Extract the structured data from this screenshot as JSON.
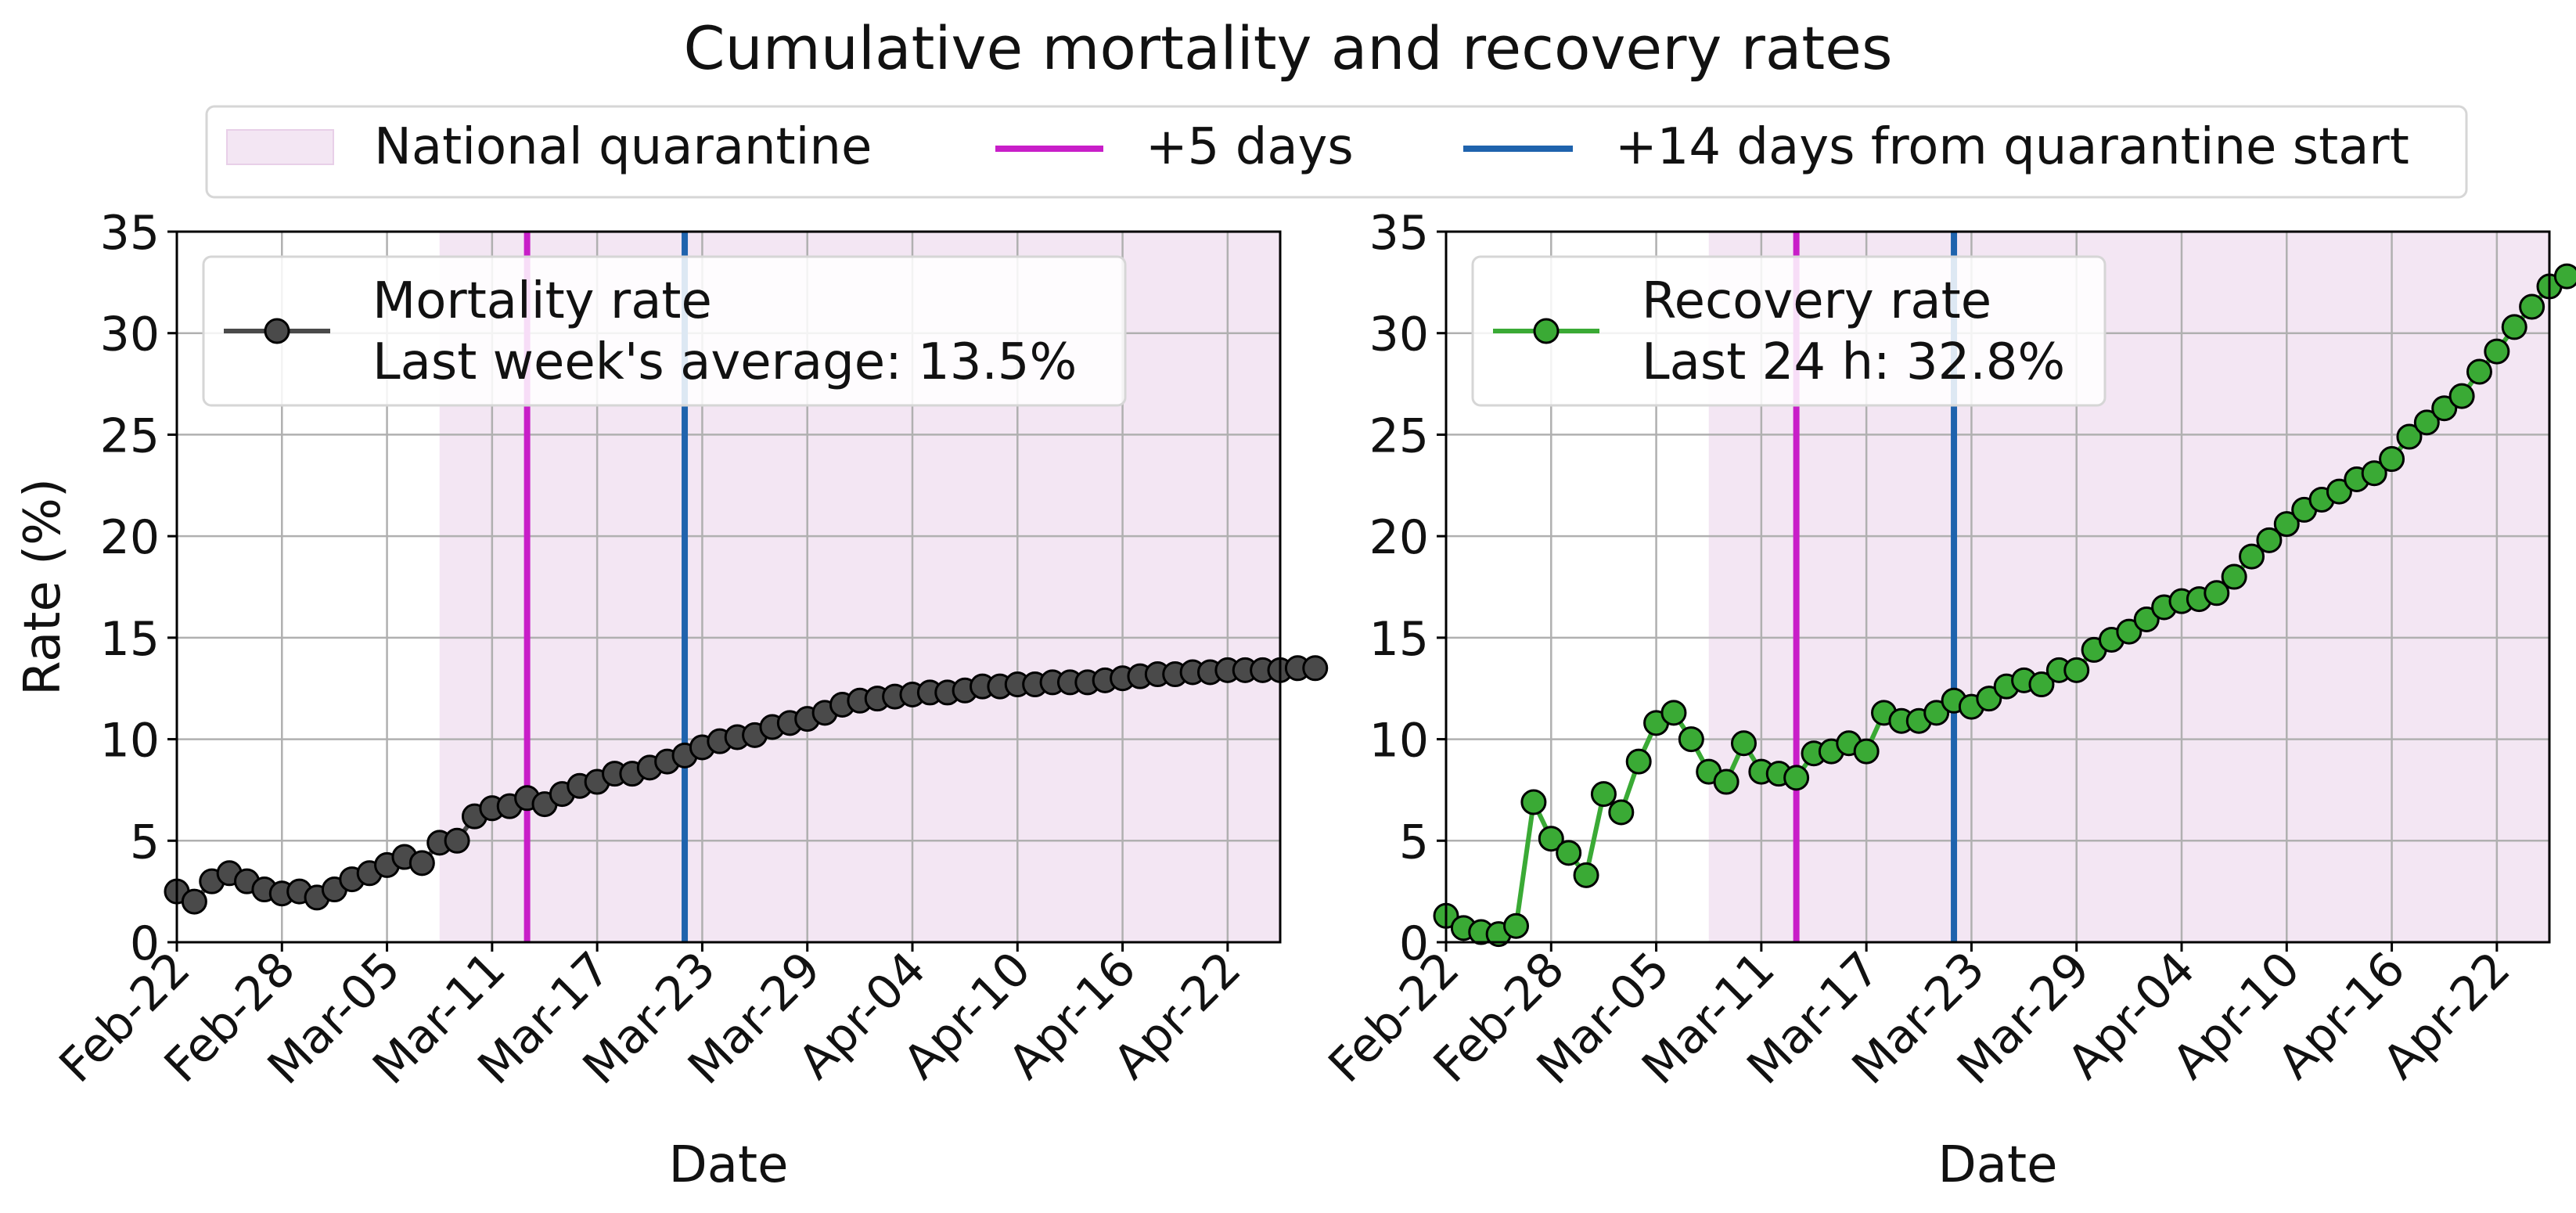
{
  "figure": {
    "title": "Cumulative mortality and recovery rates",
    "legend": {
      "quarantine_label": "National quarantine",
      "plus5_label": "+5 days",
      "plus14_label": "+14 days from quarantine start"
    },
    "colors": {
      "quarantine_fill": "#f3e6f3",
      "plus5": "#c81ec8",
      "plus14": "#1f63ad",
      "grid": "#b0b0b0",
      "mortality": "#4a4a4a",
      "recovery": "#3aaa35"
    }
  },
  "chart_data": [
    {
      "type": "line",
      "name": "mortality",
      "ylabel": "Rate (%)",
      "xlabel": "Date",
      "ylim": [
        0,
        35
      ],
      "yticks": [
        0,
        5,
        10,
        15,
        20,
        25,
        30,
        35
      ],
      "x_range": [
        "2020-02-22",
        "2020-04-25"
      ],
      "xticks": [
        "2020-02-22",
        "2020-02-28",
        "2020-03-05",
        "2020-03-11",
        "2020-03-17",
        "2020-03-23",
        "2020-03-29",
        "2020-04-04",
        "2020-04-10",
        "2020-04-16",
        "2020-04-22"
      ],
      "xtick_labels": [
        "Feb-22",
        "Feb-28",
        "Mar-05",
        "Mar-11",
        "Mar-17",
        "Mar-23",
        "Mar-29",
        "Apr-04",
        "Apr-10",
        "Apr-16",
        "Apr-22"
      ],
      "quarantine_start": "2020-03-08",
      "plus5_date": "2020-03-13",
      "plus14_date": "2020-03-22",
      "grid": true,
      "legend_position": "upper-left",
      "series": [
        {
          "name": "Mortality rate",
          "legend_line2": "Last week's average: 13.5%",
          "start_date": "2020-02-22",
          "values": [
            2.5,
            2.0,
            3.0,
            3.4,
            3.0,
            2.6,
            2.4,
            2.5,
            2.2,
            2.6,
            3.1,
            3.4,
            3.8,
            4.2,
            3.9,
            4.9,
            5.0,
            6.2,
            6.6,
            6.7,
            7.1,
            6.8,
            7.3,
            7.7,
            7.9,
            8.3,
            8.3,
            8.6,
            8.9,
            9.2,
            9.6,
            9.9,
            10.1,
            10.2,
            10.6,
            10.8,
            11.0,
            11.3,
            11.7,
            11.9,
            12.0,
            12.1,
            12.2,
            12.3,
            12.3,
            12.4,
            12.6,
            12.6,
            12.7,
            12.7,
            12.8,
            12.8,
            12.8,
            12.9,
            13.0,
            13.1,
            13.2,
            13.2,
            13.3,
            13.3,
            13.4,
            13.4,
            13.4,
            13.4,
            13.5,
            13.5
          ]
        }
      ]
    },
    {
      "type": "line",
      "name": "recovery",
      "ylabel": "",
      "xlabel": "Date",
      "ylim": [
        0,
        35
      ],
      "yticks": [
        0,
        5,
        10,
        15,
        20,
        25,
        30,
        35
      ],
      "x_range": [
        "2020-02-22",
        "2020-04-25"
      ],
      "xticks": [
        "2020-02-22",
        "2020-02-28",
        "2020-03-05",
        "2020-03-11",
        "2020-03-17",
        "2020-03-23",
        "2020-03-29",
        "2020-04-04",
        "2020-04-10",
        "2020-04-16",
        "2020-04-22"
      ],
      "xtick_labels": [
        "Feb-22",
        "Feb-28",
        "Mar-05",
        "Mar-11",
        "Mar-17",
        "Mar-23",
        "Mar-29",
        "Apr-04",
        "Apr-10",
        "Apr-16",
        "Apr-22"
      ],
      "quarantine_start": "2020-03-08",
      "plus5_date": "2020-03-13",
      "plus14_date": "2020-03-22",
      "grid": true,
      "legend_position": "upper-left",
      "series": [
        {
          "name": "Recovery rate",
          "legend_line2": "Last 24 h: 32.8%",
          "start_date": "2020-02-22",
          "values": [
            1.3,
            0.7,
            0.5,
            0.4,
            0.8,
            6.9,
            5.1,
            4.4,
            3.3,
            7.3,
            6.4,
            8.9,
            10.8,
            11.3,
            10.0,
            8.4,
            7.9,
            9.8,
            8.4,
            8.3,
            8.1,
            9.3,
            9.4,
            9.8,
            9.4,
            11.3,
            10.9,
            10.9,
            11.3,
            11.9,
            11.6,
            12.0,
            12.6,
            12.9,
            12.7,
            13.4,
            13.4,
            14.4,
            14.9,
            15.3,
            15.9,
            16.5,
            16.8,
            16.9,
            17.2,
            18.0,
            19.0,
            19.8,
            20.6,
            21.3,
            21.8,
            22.2,
            22.8,
            23.1,
            23.8,
            24.9,
            25.6,
            26.3,
            26.9,
            28.1,
            29.1,
            30.3,
            31.3,
            32.3,
            32.8
          ]
        }
      ]
    }
  ]
}
